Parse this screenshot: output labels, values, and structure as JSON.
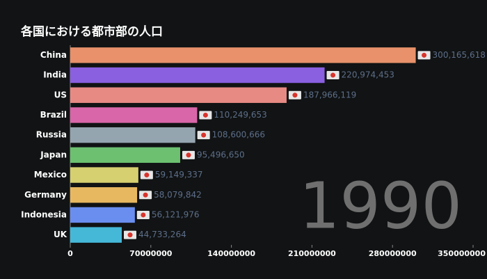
{
  "chart_data": {
    "type": "bar",
    "orientation": "horizontal",
    "title": "各国における都市部の人口",
    "annotation": "1990",
    "categories": [
      "China",
      "India",
      "US",
      "Brazil",
      "Russia",
      "Japan",
      "Mexico",
      "Germany",
      "Indonesia",
      "UK"
    ],
    "values": [
      300165618,
      220974453,
      187966119,
      110249653,
      108600666,
      95496650,
      59149337,
      58079842,
      56121976,
      44733264
    ],
    "value_labels": [
      "300,165,618",
      "220,974,453",
      "187,966,119",
      "110,249,653",
      "108,600,666",
      "95,496,650",
      "59,149,337",
      "58,079,842",
      "56,121,976",
      "44,733,264"
    ],
    "colors": [
      "#e8916a",
      "#8a5fe0",
      "#e88a84",
      "#d966a8",
      "#95a5b0",
      "#6cc070",
      "#d6d070",
      "#e8b860",
      "#6a8ef0",
      "#45b8d8"
    ],
    "xlim": [
      0,
      350000000
    ],
    "xticks": [
      0,
      70000000,
      140000000,
      210000000,
      280000000,
      350000000
    ]
  }
}
